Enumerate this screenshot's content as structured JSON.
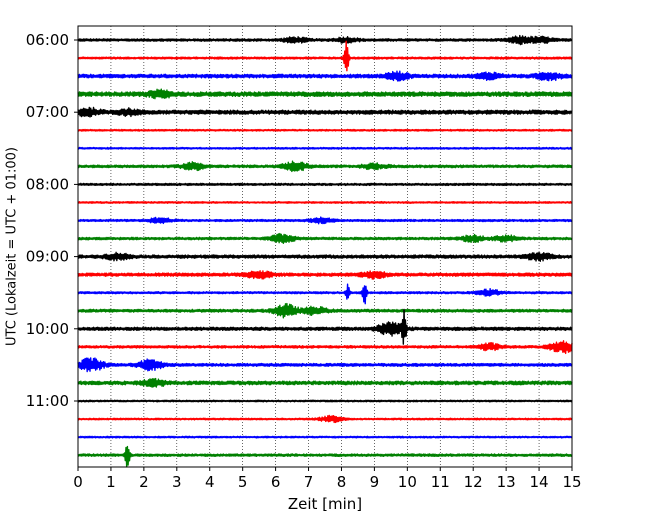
{
  "chart_data": {
    "type": "line",
    "title": "",
    "xlabel": "Zeit  [min]",
    "ylabel": "UTC (Lokalzeit = UTC + 01:00)",
    "xlim": [
      0,
      15
    ],
    "x_ticks": [
      "0",
      "1",
      "2",
      "3",
      "4",
      "5",
      "6",
      "7",
      "8",
      "9",
      "10",
      "11",
      "12",
      "13",
      "14",
      "15"
    ],
    "y_tick_labels": [
      "06:00",
      "07:00",
      "08:00",
      "09:00",
      "10:00",
      "11:00"
    ],
    "grid": "vertical dotted lines at each minute",
    "trace_interval_min": 15,
    "colors": [
      "#000000",
      "#ff0000",
      "#0000ff",
      "#008000"
    ],
    "traces": [
      {
        "start": "06:00",
        "color": "#000000",
        "amplitude": 0.12,
        "events": [
          {
            "t": 8.15,
            "a": 0.25
          },
          {
            "t": 13.45,
            "a": 0.35
          },
          {
            "t": 14.1,
            "a": 0.25
          },
          {
            "t": 6.6,
            "a": 0.25
          }
        ]
      },
      {
        "start": "06:15",
        "color": "#ff0000",
        "amplitude": 0.1,
        "events": [
          {
            "t": 8.15,
            "a": 1.9
          }
        ]
      },
      {
        "start": "06:30",
        "color": "#0000ff",
        "amplitude": 0.18,
        "events": [
          {
            "t": 9.7,
            "a": 0.35
          },
          {
            "t": 12.5,
            "a": 0.3
          },
          {
            "t": 14.3,
            "a": 0.35
          }
        ]
      },
      {
        "start": "06:45",
        "color": "#008000",
        "amplitude": 0.22,
        "events": [
          {
            "t": 2.5,
            "a": 0.3
          }
        ]
      },
      {
        "start": "07:00",
        "color": "#000000",
        "amplitude": 0.2,
        "events": [
          {
            "t": 0.3,
            "a": 0.35
          },
          {
            "t": 1.5,
            "a": 0.25
          }
        ]
      },
      {
        "start": "07:15",
        "color": "#ff0000",
        "amplitude": 0.08,
        "events": []
      },
      {
        "start": "07:30",
        "color": "#0000ff",
        "amplitude": 0.08,
        "events": []
      },
      {
        "start": "07:45",
        "color": "#008000",
        "amplitude": 0.13,
        "events": [
          {
            "t": 3.5,
            "a": 0.35
          },
          {
            "t": 6.6,
            "a": 0.45
          },
          {
            "t": 9.0,
            "a": 0.25
          }
        ]
      },
      {
        "start": "08:00",
        "color": "#000000",
        "amplitude": 0.1,
        "events": []
      },
      {
        "start": "08:15",
        "color": "#ff0000",
        "amplitude": 0.08,
        "events": []
      },
      {
        "start": "08:30",
        "color": "#0000ff",
        "amplitude": 0.1,
        "events": [
          {
            "t": 2.5,
            "a": 0.25
          },
          {
            "t": 7.4,
            "a": 0.25
          }
        ]
      },
      {
        "start": "08:45",
        "color": "#008000",
        "amplitude": 0.12,
        "events": [
          {
            "t": 6.2,
            "a": 0.4
          },
          {
            "t": 12.0,
            "a": 0.3
          },
          {
            "t": 13.0,
            "a": 0.3
          }
        ]
      },
      {
        "start": "09:00",
        "color": "#000000",
        "amplitude": 0.16,
        "events": [
          {
            "t": 1.2,
            "a": 0.3
          },
          {
            "t": 14.0,
            "a": 0.35
          }
        ]
      },
      {
        "start": "09:15",
        "color": "#ff0000",
        "amplitude": 0.16,
        "events": [
          {
            "t": 5.5,
            "a": 0.35
          },
          {
            "t": 9.0,
            "a": 0.3
          }
        ]
      },
      {
        "start": "09:30",
        "color": "#0000ff",
        "amplitude": 0.1,
        "events": [
          {
            "t": 8.2,
            "a": 0.9
          },
          {
            "t": 8.7,
            "a": 1.2
          },
          {
            "t": 12.5,
            "a": 0.3
          }
        ]
      },
      {
        "start": "09:45",
        "color": "#008000",
        "amplitude": 0.14,
        "events": [
          {
            "t": 6.3,
            "a": 0.6
          },
          {
            "t": 7.2,
            "a": 0.35
          }
        ]
      },
      {
        "start": "10:00",
        "color": "#000000",
        "amplitude": 0.16,
        "events": [
          {
            "t": 9.5,
            "a": 0.7
          },
          {
            "t": 9.9,
            "a": 1.8
          }
        ]
      },
      {
        "start": "10:15",
        "color": "#ff0000",
        "amplitude": 0.12,
        "events": [
          {
            "t": 12.5,
            "a": 0.3
          },
          {
            "t": 14.7,
            "a": 0.6
          }
        ]
      },
      {
        "start": "10:30",
        "color": "#0000ff",
        "amplitude": 0.14,
        "events": [
          {
            "t": 0.4,
            "a": 0.7
          },
          {
            "t": 2.2,
            "a": 0.5
          }
        ]
      },
      {
        "start": "10:45",
        "color": "#008000",
        "amplitude": 0.18,
        "events": [
          {
            "t": 2.3,
            "a": 0.3
          }
        ]
      },
      {
        "start": "11:00",
        "color": "#000000",
        "amplitude": 0.08,
        "events": []
      },
      {
        "start": "11:15",
        "color": "#ff0000",
        "amplitude": 0.08,
        "events": [
          {
            "t": 7.7,
            "a": 0.3
          }
        ]
      },
      {
        "start": "11:30",
        "color": "#0000ff",
        "amplitude": 0.08,
        "events": []
      },
      {
        "start": "11:45",
        "color": "#008000",
        "amplitude": 0.12,
        "events": [
          {
            "t": 1.5,
            "a": 1.7
          }
        ]
      }
    ]
  }
}
